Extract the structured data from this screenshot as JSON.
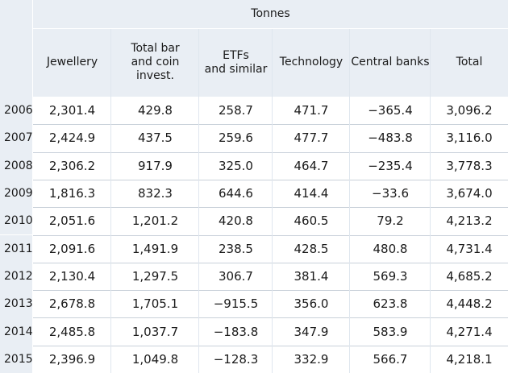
{
  "chart_data": {
    "type": "table",
    "unit_label": "Tonnes",
    "columns": [
      "Jewellery",
      "Total bar\nand coin invest.",
      "ETFs\nand similar",
      "Technology",
      "Central banks",
      "Total"
    ],
    "rows": [
      {
        "year": "2006",
        "cells": [
          "2,301.4",
          "429.8",
          "258.7",
          "471.7",
          "−365.4",
          "3,096.2"
        ]
      },
      {
        "year": "2007",
        "cells": [
          "2,424.9",
          "437.5",
          "259.6",
          "477.7",
          "−483.8",
          "3,116.0"
        ]
      },
      {
        "year": "2008",
        "cells": [
          "2,306.2",
          "917.9",
          "325.0",
          "464.7",
          "−235.4",
          "3,778.3"
        ]
      },
      {
        "year": "2009",
        "cells": [
          "1,816.3",
          "832.3",
          "644.6",
          "414.4",
          "−33.6",
          "3,674.0"
        ]
      },
      {
        "year": "2010",
        "cells": [
          "2,051.6",
          "1,201.2",
          "420.8",
          "460.5",
          "79.2",
          "4,213.2"
        ]
      },
      {
        "year": "2011",
        "cells": [
          "2,091.6",
          "1,491.9",
          "238.5",
          "428.5",
          "480.8",
          "4,731.4"
        ]
      },
      {
        "year": "2012",
        "cells": [
          "2,130.4",
          "1,297.5",
          "306.7",
          "381.4",
          "569.3",
          "4,685.2"
        ]
      },
      {
        "year": "2013",
        "cells": [
          "2,678.8",
          "1,705.1",
          "−915.5",
          "356.0",
          "623.8",
          "4,448.2"
        ]
      },
      {
        "year": "2014",
        "cells": [
          "2,485.8",
          "1,037.7",
          "−183.8",
          "347.9",
          "583.9",
          "4,271.4"
        ]
      },
      {
        "year": "2015",
        "cells": [
          "2,396.9",
          "1,049.8",
          "−128.3",
          "332.9",
          "566.7",
          "4,218.1"
        ]
      }
    ],
    "colors": {
      "header_bg": "#e9eef4",
      "body_bg": "#ffffff",
      "row_divider": "#c9d1da"
    }
  }
}
